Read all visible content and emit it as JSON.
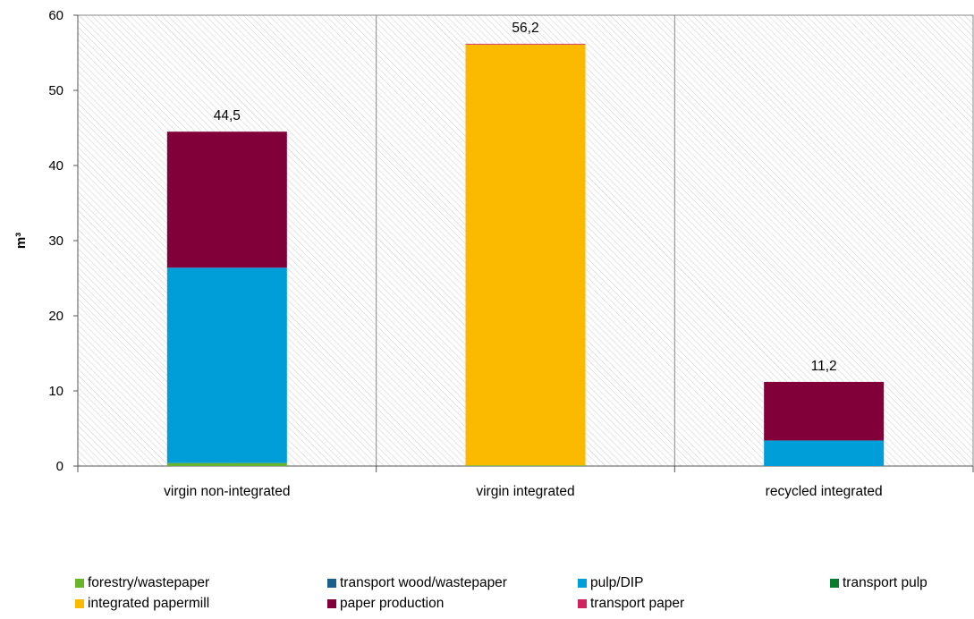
{
  "chart_data": {
    "type": "bar",
    "stacked": true,
    "ylabel": "m³",
    "xlabel": "",
    "ylim": [
      0,
      60
    ],
    "yticks": [
      0,
      10,
      20,
      30,
      40,
      50,
      60
    ],
    "grid": "hatched background, vertical separators between categories",
    "legend_position": "bottom",
    "categories": [
      "virgin non-integrated",
      "virgin integrated",
      "recycled integrated"
    ],
    "totals": [
      44.5,
      56.2,
      11.2
    ],
    "total_labels": [
      "44,5",
      "56,2",
      "11,2"
    ],
    "series": [
      {
        "name": "forestry/wastepaper",
        "color": "#6ab42d",
        "values": [
          0.4,
          0.1,
          0.0
        ]
      },
      {
        "name": "transport wood/wastepaper",
        "color": "#1b5f8c",
        "values": [
          0.0,
          0.0,
          0.0
        ]
      },
      {
        "name": "pulp/DIP",
        "color": "#009ed8",
        "values": [
          26.0,
          0.0,
          3.4
        ]
      },
      {
        "name": "transport pulp",
        "color": "#0a7a2f",
        "values": [
          0.0,
          0.0,
          0.0
        ]
      },
      {
        "name": "integrated papermill",
        "color": "#fbb900",
        "values": [
          0.0,
          56.0,
          0.0
        ]
      },
      {
        "name": "paper production",
        "color": "#82003a",
        "values": [
          18.1,
          0.0,
          7.8
        ]
      },
      {
        "name": "transport paper",
        "color": "#d0245e",
        "values": [
          0.0,
          0.1,
          0.0
        ]
      }
    ]
  }
}
